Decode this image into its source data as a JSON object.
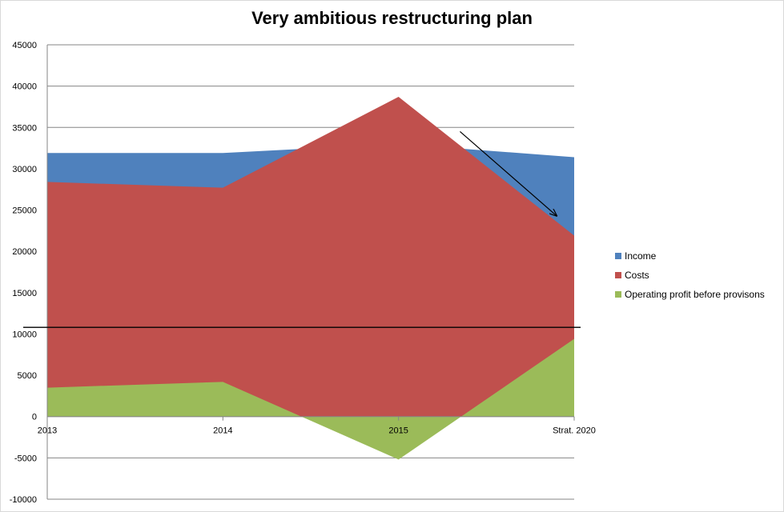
{
  "chart_data": {
    "type": "area",
    "title": "Very ambitious restructuring plan",
    "categories": [
      "2013",
      "2014",
      "2015",
      "Strat. 2020"
    ],
    "series": [
      {
        "name": "Income",
        "color": "#4f81bd",
        "values": [
          31900,
          31900,
          33000,
          31400
        ]
      },
      {
        "name": "Costs",
        "color": "#c0504d",
        "values": [
          28400,
          27700,
          38700,
          21900
        ]
      },
      {
        "name": "Operating profit before provisons",
        "color": "#9bbb59",
        "values": [
          3500,
          4200,
          -5200,
          9400
        ]
      }
    ],
    "ylim": [
      -10000,
      45000
    ],
    "yticks": [
      -10000,
      -5000,
      0,
      5000,
      10000,
      15000,
      20000,
      25000,
      30000,
      35000,
      40000,
      45000
    ],
    "xlabel": "",
    "ylabel": "",
    "grid": true,
    "legend": "right",
    "annotations": [
      {
        "type": "horizontal-line",
        "y": 10800
      },
      {
        "type": "arrow",
        "from": {
          "x": 2.35,
          "y": 34500
        },
        "to": {
          "x": 2.9,
          "y": 24300
        }
      }
    ]
  }
}
